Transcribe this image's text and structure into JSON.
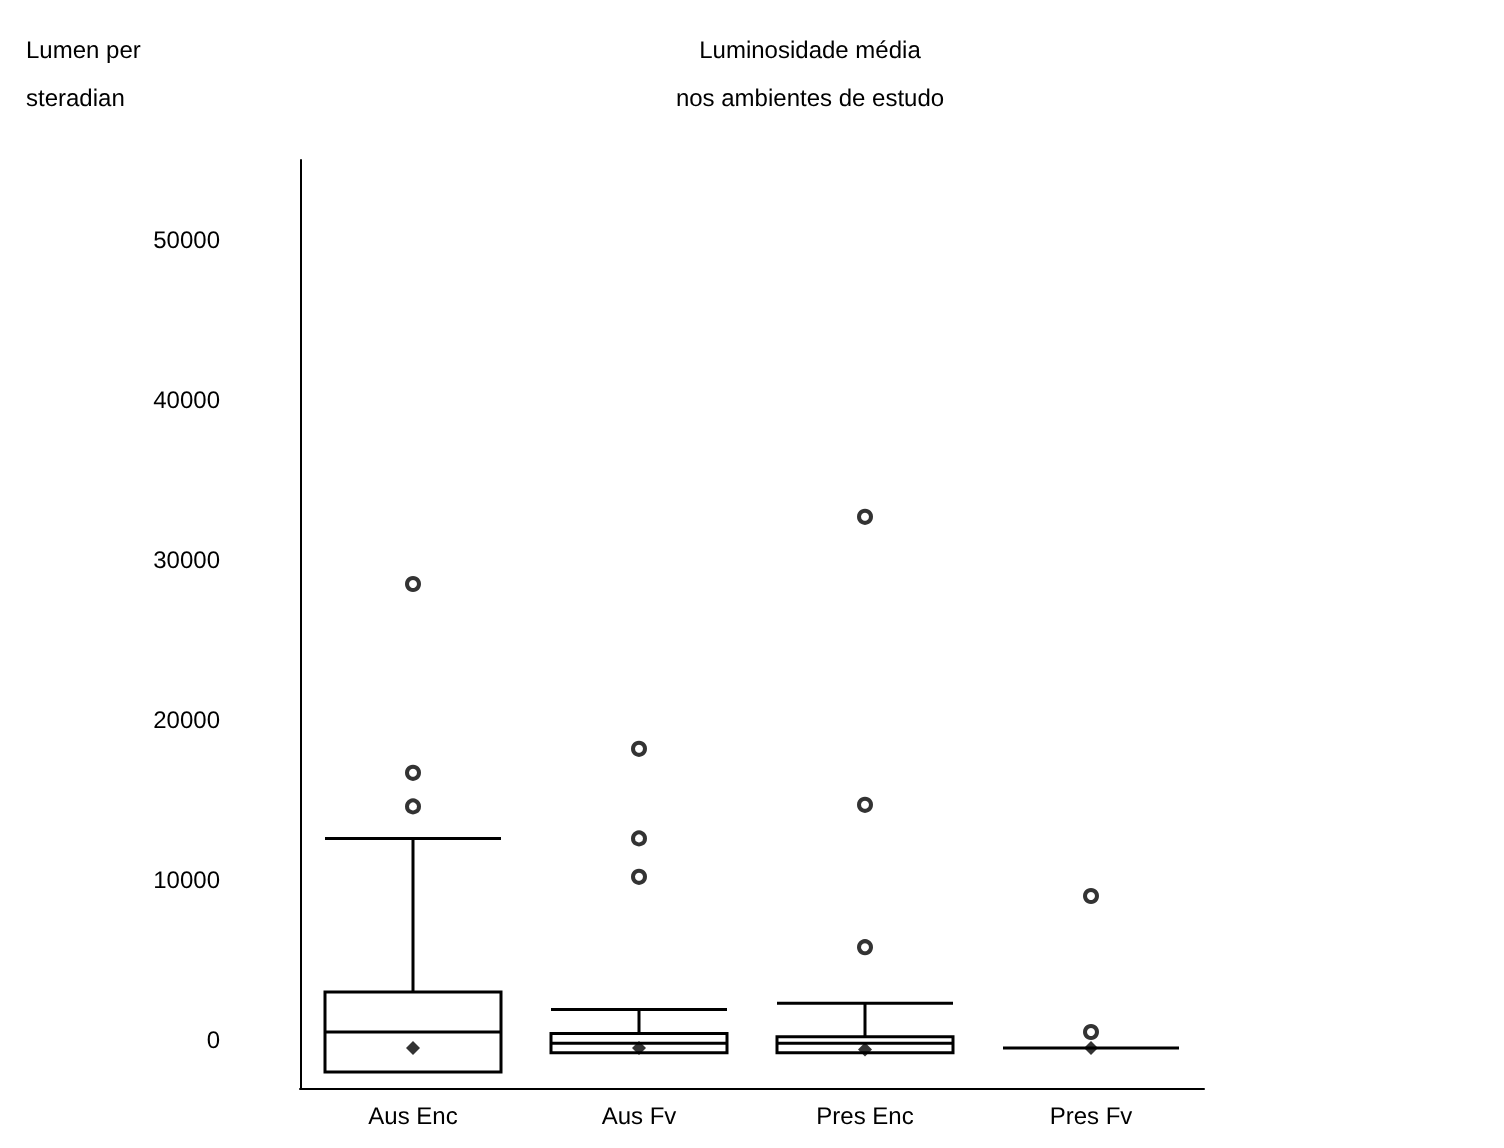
{
  "chart_data": {
    "type": "box",
    "title": "Luminosidade média\nnos ambientes de estudo",
    "ylabel": "Lumen per\nsteradian",
    "categories": [
      "Aus Enc",
      "Aus Fv",
      "Pres Enc",
      "Pres Fv"
    ],
    "boxes": [
      {
        "low": -2000,
        "q1": -2000,
        "median": 500,
        "q3": 3000,
        "high": 12600,
        "mean": -500,
        "outliers": [
          14600,
          16700,
          28500
        ]
      },
      {
        "low": -800,
        "q1": -800,
        "median": -200,
        "q3": 400,
        "high": 1900,
        "mean": -500,
        "outliers": [
          10200,
          12600,
          18200
        ]
      },
      {
        "low": -800,
        "q1": -800,
        "median": -200,
        "q3": 200,
        "high": 2300,
        "mean": -600,
        "outliers": [
          5800,
          14700,
          32700
        ]
      },
      {
        "low": -500,
        "q1": -500,
        "median": -500,
        "q3": -500,
        "high": -500,
        "mean": -500,
        "outliers": [
          500,
          9000
        ]
      }
    ],
    "ylim": [
      -3000,
      55000
    ],
    "yticks": [
      0,
      10000,
      20000,
      30000,
      40000,
      50000
    ],
    "grid": false,
    "legend": false
  }
}
